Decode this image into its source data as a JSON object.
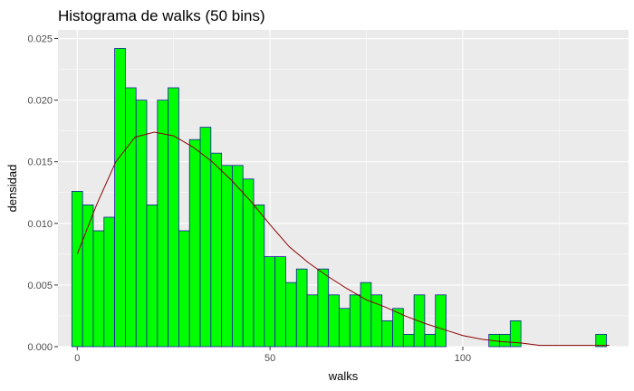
{
  "chart_data": {
    "type": "bar",
    "title": "Histograma de walks (50 bins)",
    "xlabel": "walks",
    "ylabel": "densidad",
    "xlim": [
      -5,
      143
    ],
    "ylim": [
      0,
      0.0257
    ],
    "x_ticks": [
      0,
      50,
      100
    ],
    "y_ticks": [
      0,
      0.005,
      0.01,
      0.015,
      0.02,
      0.025
    ],
    "y_tick_labels": [
      "0.000",
      "0.005",
      "0.010",
      "0.015",
      "0.020",
      "0.025"
    ],
    "grid": true,
    "bin_width": 2.773,
    "bin_start": -1.387,
    "values": [
      0.0126,
      0.0115,
      0.0094,
      0.0105,
      0.0242,
      0.021,
      0.02,
      0.0115,
      0.02,
      0.021,
      0.0094,
      0.0168,
      0.0178,
      0.0157,
      0.0147,
      0.0147,
      0.0136,
      0.0115,
      0.0073,
      0.0073,
      0.0052,
      0.0063,
      0.0042,
      0.0063,
      0.0042,
      0.0031,
      0.0042,
      0.0052,
      0.0042,
      0.0021,
      0.0031,
      0.001,
      0.0042,
      0.001,
      0.0042,
      0.0,
      0.0,
      0.0,
      0.0,
      0.001,
      0.001,
      0.0021,
      0.0,
      0.0,
      0.0,
      0.0,
      0.0,
      0.0,
      0.0,
      0.001
    ],
    "density_curve": {
      "x": [
        0,
        5,
        10,
        15,
        20,
        25,
        30,
        35,
        40,
        45,
        50,
        55,
        60,
        65,
        70,
        75,
        80,
        85,
        90,
        95,
        100,
        105,
        110,
        115,
        120,
        125,
        130,
        135,
        138
      ],
      "y": [
        0.0075,
        0.0115,
        0.015,
        0.017,
        0.0174,
        0.0171,
        0.0162,
        0.015,
        0.0135,
        0.0118,
        0.0099,
        0.0081,
        0.0068,
        0.0057,
        0.0047,
        0.0038,
        0.0032,
        0.0025,
        0.0019,
        0.0014,
        0.0009,
        0.0006,
        0.0004,
        0.0003,
        0.0001,
        0.0001,
        0.0001,
        0.0001,
        0.0001
      ]
    },
    "colors": {
      "bar_fill": "#00ff00",
      "bar_outline": "#1a1aa6",
      "curve": "#8b0000",
      "panel_bg": "#ebebeb",
      "grid_major": "#ffffff",
      "tick_label": "#4d4d4d"
    }
  }
}
